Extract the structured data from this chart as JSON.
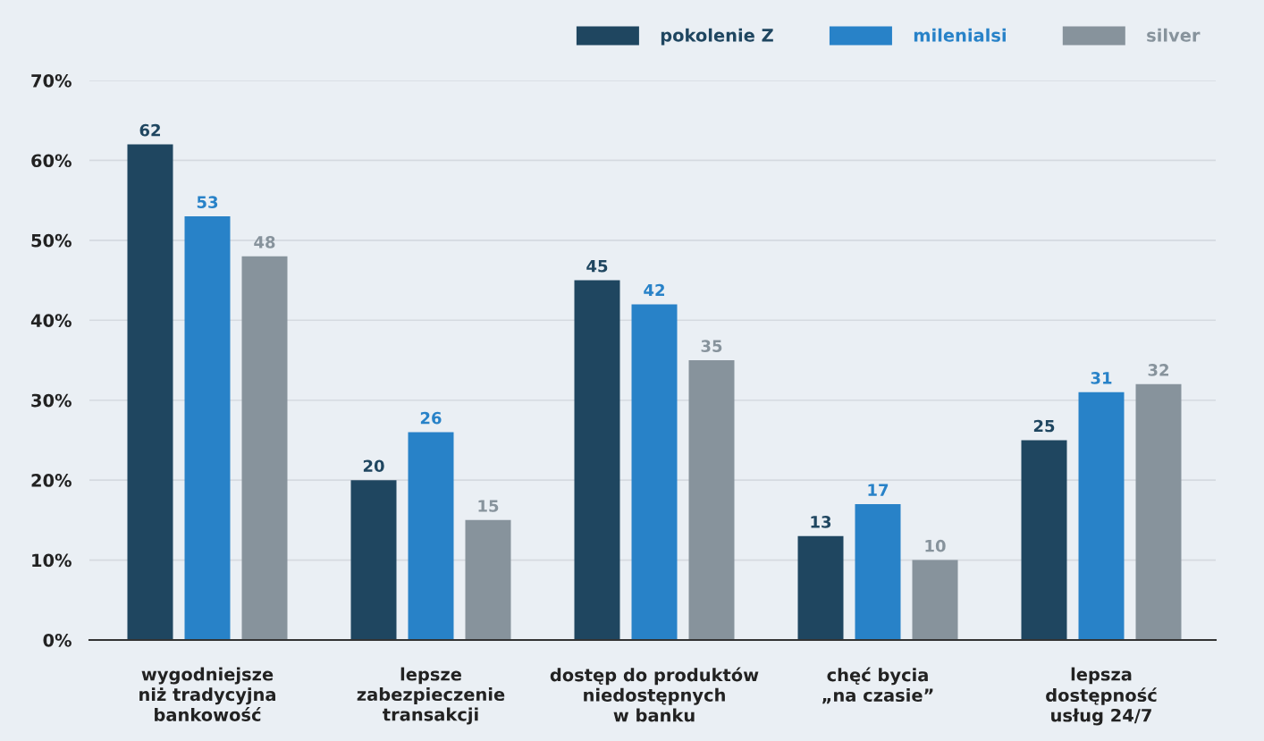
{
  "chart_data": {
    "type": "bar",
    "categories": [
      "wygodniejsze\nniż tradycyjna\nbankowość",
      "lepsze\nzabezpieczenie\ntransakcji",
      "dostęp do produktów\nniedostępnych\nw banku",
      "chęć bycia\n„na czasie”",
      "lepsza\ndostępność\nusług 24/7"
    ],
    "series": [
      {
        "name": "pokolenie Z",
        "color": "#1f4660",
        "values": [
          62,
          20,
          45,
          13,
          25
        ]
      },
      {
        "name": "milenialsi",
        "color": "#2882c8",
        "values": [
          53,
          26,
          42,
          17,
          31
        ]
      },
      {
        "name": "silver",
        "color": "#87939c",
        "values": [
          48,
          15,
          35,
          10,
          32
        ]
      }
    ],
    "ylim": [
      0,
      70
    ],
    "yticks": [
      {
        "value": 0,
        "label": "0%"
      },
      {
        "value": 10,
        "label": "10%"
      },
      {
        "value": 20,
        "label": "20%"
      },
      {
        "value": 30,
        "label": "30%"
      },
      {
        "value": 40,
        "label": "40%"
      },
      {
        "value": 50,
        "label": "50%"
      },
      {
        "value": 60,
        "label": "60%"
      },
      {
        "value": 70,
        "label": "70%"
      }
    ],
    "grid": "y",
    "legend": "top right",
    "data_labels": true
  }
}
